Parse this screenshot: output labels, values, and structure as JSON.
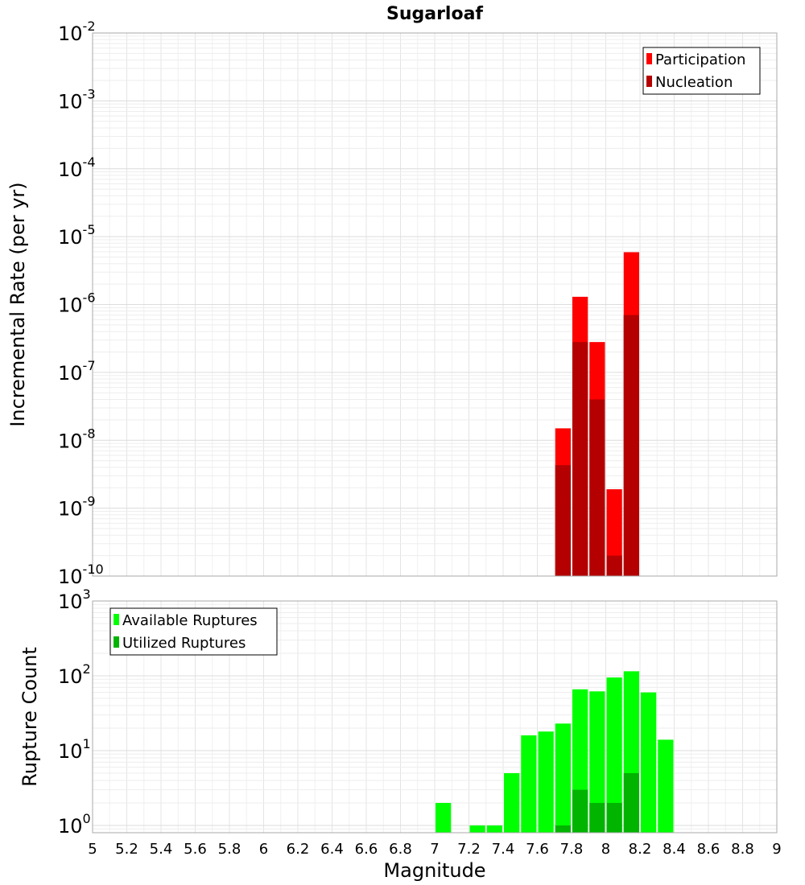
{
  "chart_data": {
    "type": "bar",
    "title": "Sugarloaf",
    "xlabel": "Magnitude",
    "xlim": [
      5,
      9
    ],
    "xticks": [
      "5",
      "5.2",
      "5.4",
      "5.6",
      "5.8",
      "6",
      "6.2",
      "6.4",
      "6.6",
      "6.8",
      "7",
      "7.2",
      "7.4",
      "7.6",
      "7.8",
      "8",
      "8.2",
      "8.4",
      "8.6",
      "8.8",
      "9"
    ],
    "bin_width": 0.1,
    "panels": [
      {
        "id": "rate",
        "ylabel": "Incremental Rate (per yr)",
        "yscale": "log",
        "ylim_exponent": [
          -10,
          -2
        ],
        "ytick_base": "10",
        "ytick_exponents": [
          "-10",
          "-9",
          "-8",
          "-7",
          "-6",
          "-5",
          "-4",
          "-3",
          "-2"
        ],
        "legend_position": "top-right",
        "series": [
          {
            "name": "Participation",
            "color": "#ff0000",
            "x": [
              7.75,
              7.85,
              7.95,
              8.05,
              8.15
            ],
            "values": [
              1.5e-08,
              1.3e-06,
              2.8e-07,
              1.9e-09,
              5.9e-06
            ]
          },
          {
            "name": "Nucleation",
            "color": "#b40000",
            "x": [
              7.75,
              7.85,
              7.95,
              8.05,
              8.15
            ],
            "values": [
              4.3e-09,
              2.8e-07,
              4e-08,
              2e-10,
              7e-07
            ]
          }
        ]
      },
      {
        "id": "count",
        "ylabel": "Rupture Count",
        "yscale": "log",
        "ylim": [
          0.8,
          1000
        ],
        "ytick_base": "10",
        "ytick_exponents": [
          "0",
          "1",
          "2",
          "3"
        ],
        "legend_position": "top-left",
        "series": [
          {
            "name": "Available Ruptures",
            "color": "#00ff00",
            "x": [
              7.05,
              7.25,
              7.35,
              7.45,
              7.55,
              7.65,
              7.75,
              7.85,
              7.95,
              8.05,
              8.15,
              8.25,
              8.35
            ],
            "values": [
              2,
              1,
              1,
              5,
              16,
              18,
              23,
              66,
              62,
              95,
              115,
              60,
              14
            ]
          },
          {
            "name": "Utilized Ruptures",
            "color": "#00b400",
            "x": [
              7.75,
              7.85,
              7.95,
              8.05,
              8.15
            ],
            "values": [
              1,
              3,
              2,
              2,
              5
            ]
          }
        ]
      }
    ]
  }
}
